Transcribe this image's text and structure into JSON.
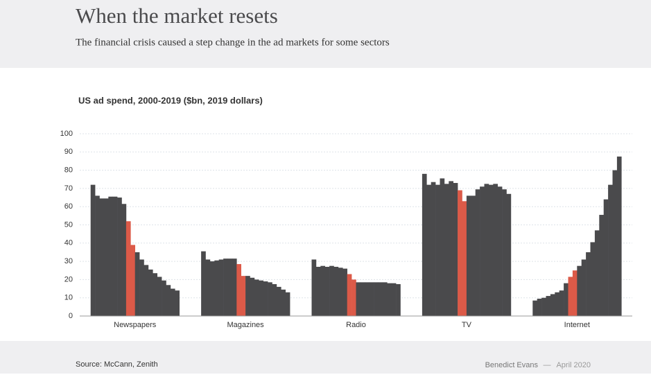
{
  "header": {
    "title": "When the market resets",
    "subtitle": "The financial crisis caused a step change in the ad markets for some sectors"
  },
  "chart_data": {
    "type": "grouped-bar",
    "title": "US ad spend, 2000-2019 ($bn, 2019 dollars)",
    "categories": [
      "Newspapers",
      "Magazines",
      "Radio",
      "TV",
      "Internet"
    ],
    "values": [
      [
        72,
        66,
        64.5,
        64.5,
        65.5,
        65.5,
        65,
        61.5,
        52,
        39,
        35,
        31,
        28,
        25.5,
        23.5,
        21.5,
        19.5,
        17,
        15,
        14
      ],
      [
        35.5,
        31,
        30,
        30.5,
        31,
        31.5,
        31.5,
        31.5,
        28.5,
        22,
        22,
        21,
        20,
        19.5,
        19,
        18.5,
        17.5,
        16,
        14.5,
        13
      ],
      [
        31,
        27,
        27.5,
        27,
        27.5,
        27,
        26.5,
        26,
        23,
        20,
        18.5,
        18.5,
        18.5,
        18.5,
        18.5,
        18.5,
        18.5,
        18,
        18,
        17.5
      ],
      [
        78,
        72,
        73.5,
        72,
        75.5,
        72.5,
        74,
        73,
        69,
        63,
        66,
        66,
        69.5,
        71,
        72.5,
        72,
        72.5,
        71,
        69.5,
        67
      ],
      [
        8.5,
        9.5,
        10,
        11,
        12,
        13,
        14,
        18,
        21.5,
        25,
        27.5,
        31,
        35,
        40.5,
        47,
        55.5,
        64,
        72,
        80,
        87.5
      ]
    ],
    "color": "#4a4a4c",
    "highlight_color": "#dc5a48",
    "highlight_indices": [
      8,
      9
    ],
    "ylim": [
      0,
      100
    ],
    "yticks": [
      0,
      10,
      20,
      30,
      40,
      50,
      60,
      70,
      80,
      90,
      100
    ],
    "grid": true
  },
  "footer": {
    "source": "Source: McCann, Zenith",
    "byline": "Benedict Evans",
    "date": "April 2020"
  }
}
